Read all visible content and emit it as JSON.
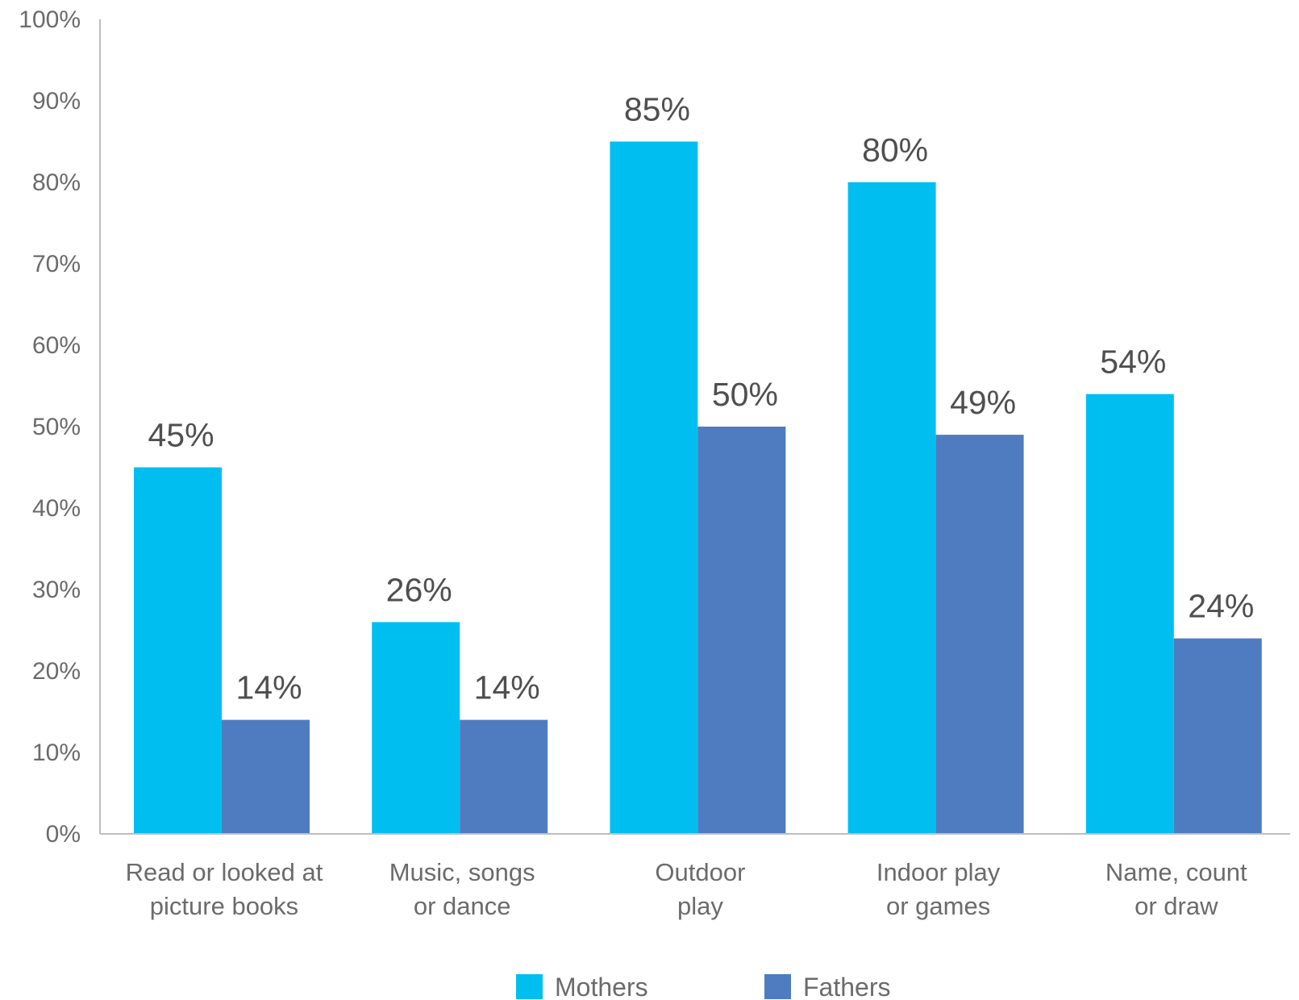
{
  "chart_data": {
    "type": "bar",
    "categories": [
      [
        "Read or looked at",
        "picture books"
      ],
      [
        "Music, songs",
        "or dance"
      ],
      [
        "Outdoor",
        "play"
      ],
      [
        "Indoor play",
        "or games"
      ],
      [
        "Name, count",
        "or draw"
      ]
    ],
    "series": [
      {
        "name": "Mothers",
        "color": "#00bff0",
        "values": [
          45,
          26,
          85,
          80,
          54
        ],
        "labels": [
          "45%",
          "26%",
          "85%",
          "80%",
          "54%"
        ]
      },
      {
        "name": "Fathers",
        "color": "#4f7cc1",
        "values": [
          14,
          14,
          50,
          49,
          24
        ],
        "labels": [
          "14%",
          "14%",
          "50%",
          "49%",
          "24%"
        ]
      }
    ],
    "yticks": [
      "0%",
      "10%",
      "20%",
      "30%",
      "40%",
      "50%",
      "60%",
      "70%",
      "80%",
      "90%",
      "100%"
    ],
    "ylim": [
      0,
      100
    ],
    "grid": false,
    "legend_position": "bottom-center",
    "title": "",
    "xlabel": "",
    "ylabel": ""
  }
}
